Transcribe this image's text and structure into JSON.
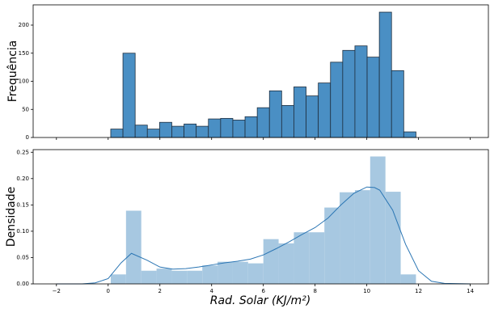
{
  "chart_data": [
    {
      "type": "histogram",
      "ylabel": "Frequência",
      "bins": [
        0.1,
        0.572,
        1.044,
        1.516,
        1.988,
        2.46,
        2.932,
        3.404,
        3.876,
        4.348,
        4.82,
        5.292,
        5.764,
        6.236,
        6.708,
        7.18,
        7.652,
        8.124,
        8.596,
        9.068,
        9.54,
        10.012,
        10.484,
        10.956,
        11.428,
        11.9
      ],
      "values": [
        15,
        150,
        22,
        15,
        27,
        20,
        24,
        20,
        33,
        34,
        31,
        37,
        53,
        83,
        57,
        90,
        74,
        97,
        134,
        155,
        163,
        143,
        223,
        119,
        10
      ],
      "color": "#4a8fc4",
      "edgecolor": "#1f2f3f",
      "xlim": [
        -2.9,
        14.7
      ],
      "ylim": [
        0,
        236
      ],
      "yticks": [
        0,
        50,
        100,
        150,
        200
      ]
    },
    {
      "type": "histogram",
      "ylabel": "Densidade",
      "xlabel": "Rad. Solar (KJ/m²)",
      "bins": [
        0.1,
        0.69,
        1.28,
        1.87,
        2.46,
        3.05,
        3.64,
        4.23,
        4.82,
        5.41,
        6.0,
        6.59,
        7.18,
        7.77,
        8.36,
        8.95,
        9.54,
        10.13,
        10.72,
        11.31,
        11.9
      ],
      "values": [
        0.018,
        0.139,
        0.025,
        0.029,
        0.025,
        0.025,
        0.035,
        0.042,
        0.042,
        0.039,
        0.085,
        0.077,
        0.098,
        0.098,
        0.145,
        0.174,
        0.178,
        0.242,
        0.175,
        0.018
      ],
      "color": "#a7c8e1",
      "kde": {
        "color": "#2a75b3",
        "x": [
          -2,
          -1,
          -0.5,
          0,
          0.5,
          0.9,
          1.5,
          2,
          2.5,
          3,
          3.5,
          4,
          4.5,
          5,
          5.5,
          6,
          6.5,
          7,
          7.5,
          8,
          8.5,
          9,
          9.5,
          10,
          10.3,
          10.5,
          11,
          11.5,
          12,
          12.5,
          13,
          14
        ],
        "y": [
          0,
          0,
          0.002,
          0.01,
          0.04,
          0.058,
          0.045,
          0.032,
          0.028,
          0.029,
          0.032,
          0.036,
          0.04,
          0.043,
          0.047,
          0.055,
          0.067,
          0.08,
          0.094,
          0.107,
          0.125,
          0.15,
          0.172,
          0.184,
          0.183,
          0.178,
          0.14,
          0.075,
          0.025,
          0.005,
          0.001,
          0
        ]
      },
      "xlim": [
        -2.9,
        14.7
      ],
      "ylim": [
        0,
        0.255
      ],
      "yticks": [
        {
          "value": 0,
          "label": "0.00"
        },
        {
          "value": 0.05,
          "label": "0.05"
        },
        {
          "value": 0.1,
          "label": "0.10"
        },
        {
          "value": 0.15,
          "label": "0.15"
        },
        {
          "value": 0.2,
          "label": "0.20"
        },
        {
          "value": 0.25,
          "label": "0.25"
        }
      ],
      "xticks": [
        {
          "value": -2,
          "label": "−2"
        },
        0,
        2,
        4,
        6,
        8,
        10,
        12,
        14
      ]
    }
  ]
}
